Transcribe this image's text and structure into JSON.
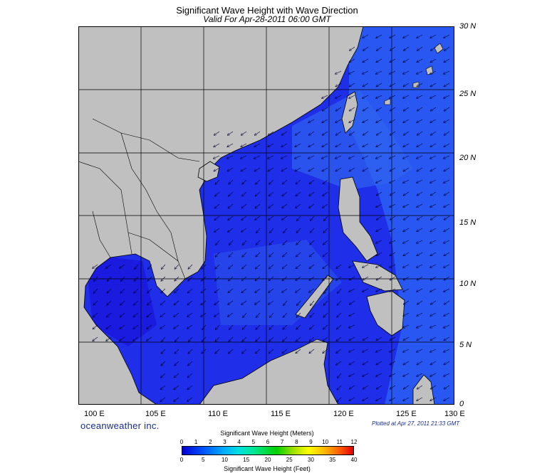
{
  "map": {
    "title": "Significant Wave Height with Wave Direction",
    "subtitle": "Valid For Apr-28-2011 06:00 GMT",
    "brand": "oceanweather inc.",
    "plotted": "Plotted at Apr 27, 2011 21:33 GMT",
    "lat_labels": [
      "30 N",
      "25 N",
      "20 N",
      "15 N",
      "10 N",
      "5 N",
      "0"
    ],
    "lon_labels": [
      "100 E",
      "105 E",
      "110 E",
      "115 E",
      "120 E",
      "125 E",
      "130 E"
    ],
    "colors": {
      "land": "#c0c0c0",
      "sea_deep": "#1a1ae6",
      "sea_light": "#2d5cf0",
      "arrow": "#000033"
    }
  },
  "colorbar": {
    "title_top": "Significant Wave Height (Meters)",
    "title_bottom": "Significant Wave Height (Feet)",
    "meters": [
      "0",
      "1",
      "2",
      "3",
      "4",
      "5",
      "6",
      "7",
      "8",
      "9",
      "10",
      "11",
      "12"
    ],
    "feet": [
      "0",
      "5",
      "10",
      "15",
      "20",
      "25",
      "30",
      "35",
      "40"
    ]
  }
}
